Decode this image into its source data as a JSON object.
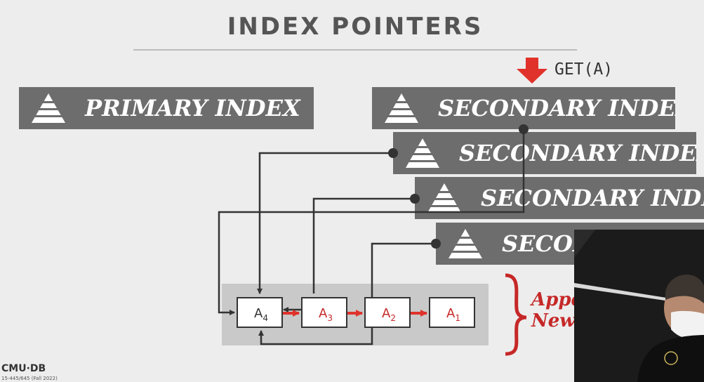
{
  "title": "INDEX POINTERS",
  "get_label": "GET(A)",
  "primary_index": {
    "label": "PRIMARY INDEX"
  },
  "secondary_indexes": [
    {
      "label": "SECONDARY INDEX"
    },
    {
      "label": "SECONDARY INDEX"
    },
    {
      "label": "SECONDARY INDEX"
    },
    {
      "label": "SECONDARY INDEX"
    }
  ],
  "versions": [
    {
      "base": "A",
      "sub": "4"
    },
    {
      "base": "A",
      "sub": "3"
    },
    {
      "base": "A",
      "sub": "2"
    },
    {
      "base": "A",
      "sub": "1"
    }
  ],
  "append_label": {
    "line1": "Appe",
    "line2": "New"
  },
  "footer": {
    "brand": "CMU·DB",
    "course": "15-445/645 (Fall 2022)"
  },
  "colors": {
    "accent": "#e0322b",
    "box": "#6d6d6d",
    "line": "#333333"
  }
}
